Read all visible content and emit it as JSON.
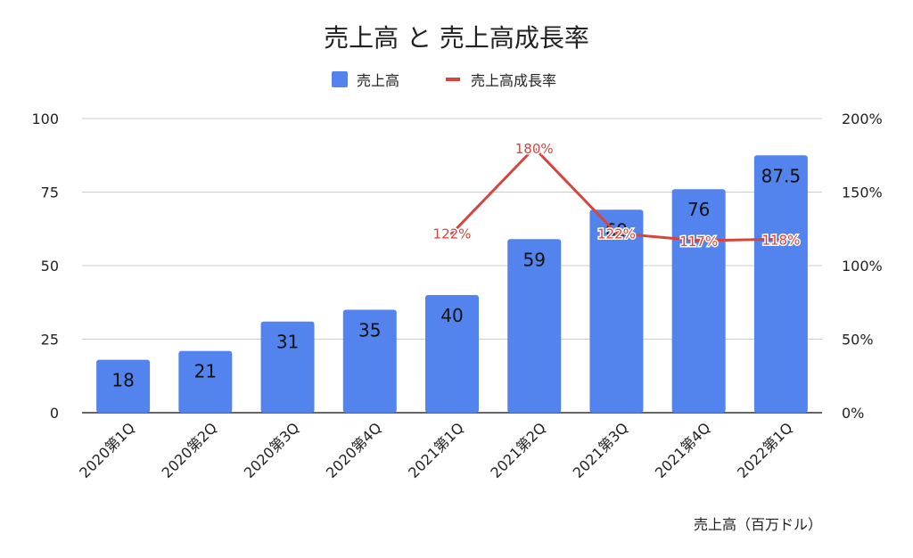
{
  "chart_data": {
    "type": "bar",
    "title": "売上高 と 売上高成長率",
    "categories": [
      "2020第1Q",
      "2020第2Q",
      "2020第3Q",
      "2020第4Q",
      "2021第1Q",
      "2021第2Q",
      "2021第3Q",
      "2021第4Q",
      "2022第1Q"
    ],
    "series": [
      {
        "name": "売上高",
        "type": "bar",
        "axis": "left",
        "color": "#5383ec",
        "values": [
          18,
          21,
          31,
          35,
          40,
          59,
          69,
          76,
          87.5
        ],
        "labels": [
          "18",
          "21",
          "31",
          "35",
          "40",
          "59",
          "69",
          "76",
          "87.5"
        ]
      },
      {
        "name": "売上高成長率",
        "type": "line",
        "axis": "right",
        "color": "#d6453d",
        "values": [
          null,
          null,
          null,
          null,
          1.22,
          1.8,
          1.22,
          1.17,
          1.18
        ],
        "labels": [
          "",
          "",
          "",
          "",
          "122%",
          "180%",
          "122%",
          "117%",
          "118%"
        ]
      }
    ],
    "y_left": {
      "ylim": [
        0,
        100
      ],
      "ticks": [
        "0",
        "25",
        "50",
        "75",
        "100"
      ]
    },
    "y_right": {
      "ylim": [
        0,
        2
      ],
      "ticks": [
        "0%",
        "50%",
        "100%",
        "150%",
        "200%"
      ]
    },
    "grid": true,
    "legend_position": "top-center",
    "footnote": "売上高（百万ドル）"
  }
}
